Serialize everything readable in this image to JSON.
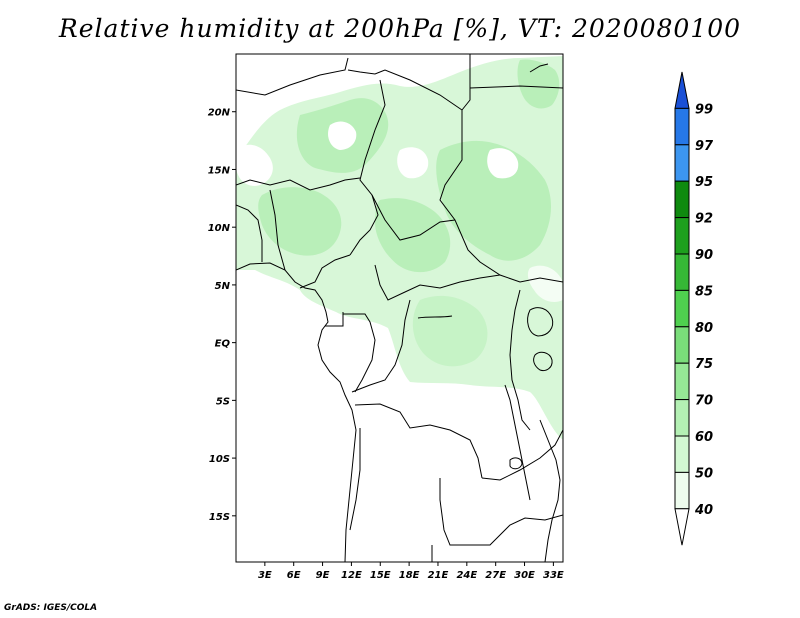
{
  "title": "Relative humidity at 200hPa [%], VT: 2020080100",
  "footer": "GrADS: IGES/COLA",
  "map": {
    "lat_range": [
      -19,
      25
    ],
    "lon_range": [
      0,
      34
    ],
    "lat_ticks": [
      {
        "value": 20,
        "label": "20N"
      },
      {
        "value": 15,
        "label": "15N"
      },
      {
        "value": 10,
        "label": "10N"
      },
      {
        "value": 5,
        "label": "5N"
      },
      {
        "value": 0,
        "label": "EQ"
      },
      {
        "value": -5,
        "label": "5S"
      },
      {
        "value": -10,
        "label": "10S"
      },
      {
        "value": -15,
        "label": "15S"
      }
    ],
    "lon_ticks": [
      {
        "value": 3,
        "label": "3E"
      },
      {
        "value": 6,
        "label": "6E"
      },
      {
        "value": 9,
        "label": "9E"
      },
      {
        "value": 12,
        "label": "12E"
      },
      {
        "value": 15,
        "label": "15E"
      },
      {
        "value": 18,
        "label": "18E"
      },
      {
        "value": 21,
        "label": "21E"
      },
      {
        "value": 24,
        "label": "24E"
      },
      {
        "value": 27,
        "label": "27E"
      },
      {
        "value": 30,
        "label": "30E"
      },
      {
        "value": 33,
        "label": "33E"
      }
    ]
  },
  "colorbar": {
    "levels": [
      "99",
      "97",
      "95",
      "92",
      "90",
      "85",
      "80",
      "75",
      "70",
      "60",
      "50",
      "40"
    ],
    "colors": [
      "#1a50d6",
      "#2678e8",
      "#3c96f0",
      "#0f8a0f",
      "#1ea01e",
      "#36b836",
      "#4fd04f",
      "#7add7a",
      "#96e896",
      "#b4f0b4",
      "#d2f8d2",
      "#eefcee",
      "#ffffff"
    ]
  }
}
